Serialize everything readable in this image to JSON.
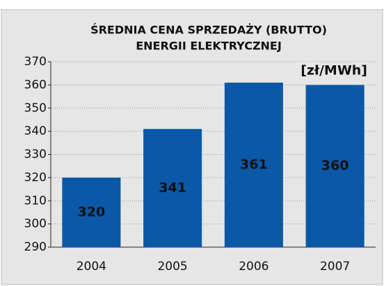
{
  "chart_data": {
    "type": "bar",
    "title": [
      "ŚREDNIA CENA SPRZEDAŻY (BRUTTO)",
      "ENERGII ELEKTRYCZNEJ"
    ],
    "annotation": "[zł/MWh]",
    "categories": [
      "2004",
      "2005",
      "2006",
      "2007"
    ],
    "values": [
      320,
      341,
      361,
      360
    ],
    "color": "#0b58a6",
    "ylim": [
      290,
      370
    ],
    "yticks": [
      290,
      300,
      310,
      320,
      330,
      340,
      350,
      360,
      370
    ],
    "grid": true
  }
}
